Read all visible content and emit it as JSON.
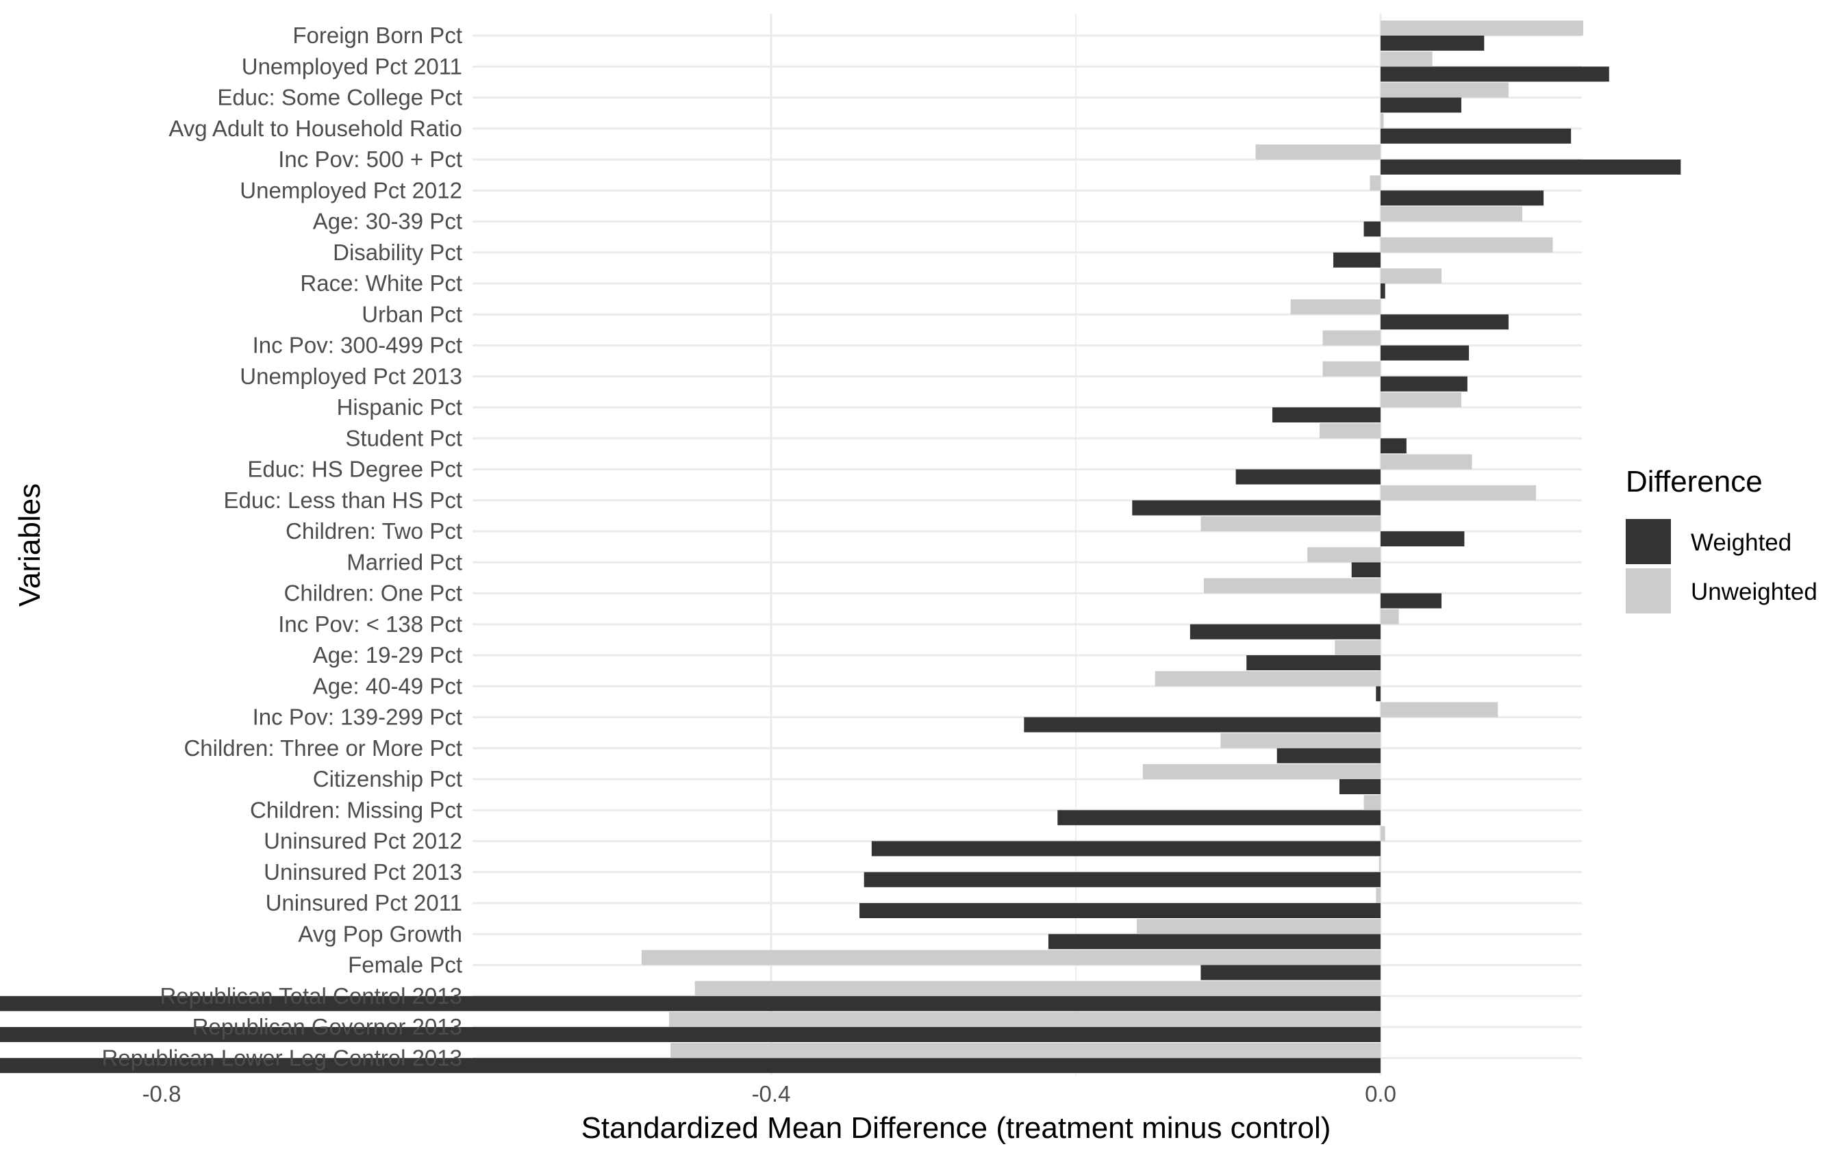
{
  "chart_data": {
    "type": "bar",
    "orientation": "horizontal",
    "title": "",
    "xlabel": "Standardized Mean Difference (treatment minus control)",
    "ylabel": "Variables",
    "xlim": [
      -1.2,
      0.265
    ],
    "x_ticks": [
      {
        "value": -0.8,
        "label": "-0.8"
      },
      {
        "value": -0.4,
        "label": "-0.4"
      },
      {
        "value": 0.0,
        "label": "0.0"
      }
    ],
    "grid": true,
    "legend": {
      "title": "Difference",
      "placement": "right"
    },
    "categories": [
      "Foreign Born Pct",
      "Unemployed Pct 2011",
      "Educ: Some College Pct",
      "Avg Adult to Household Ratio",
      "Inc Pov: 500 + Pct",
      "Unemployed Pct 2012",
      "Age: 30-39 Pct",
      "Disability Pct",
      "Race: White Pct",
      "Urban Pct",
      "Inc Pov: 300-499 Pct",
      "Unemployed Pct 2013",
      "Hispanic Pct",
      "Student Pct",
      "Educ: HS Degree Pct",
      "Educ: Less than HS Pct",
      "Children: Two Pct",
      "Married Pct",
      "Children: One Pct",
      "Inc Pov: < 138 Pct",
      "Age: 19-29 Pct",
      "Age: 40-49 Pct",
      "Inc Pov: 139-299 Pct",
      "Children: Three or More Pct",
      "Citizenship Pct",
      "Children: Missing Pct",
      "Uninsured Pct 2012",
      "Uninsured Pct 2013",
      "Uninsured Pct 2011",
      "Avg Pop Growth",
      "Female Pct",
      "Republican Total Control 2013",
      "Republican Governor 2013",
      "Republican Lower Leg Control 2013"
    ],
    "series": [
      {
        "name": "Weighted",
        "color": "#333333",
        "values": [
          0.068,
          0.15,
          0.053,
          0.125,
          0.197,
          0.107,
          -0.011,
          -0.031,
          0.003,
          0.084,
          0.058,
          0.057,
          -0.071,
          0.017,
          -0.095,
          -0.163,
          0.055,
          -0.019,
          0.04,
          -0.125,
          -0.088,
          -0.003,
          -0.234,
          -0.068,
          -0.027,
          -0.212,
          -0.334,
          -0.339,
          -0.342,
          -0.218,
          -0.118,
          -1.016,
          -1.022,
          -1.117
        ]
      },
      {
        "name": "Unweighted",
        "color": "#cccccc",
        "values": [
          0.133,
          0.034,
          0.084,
          0.002,
          -0.082,
          -0.007,
          0.093,
          0.113,
          0.04,
          -0.059,
          -0.038,
          -0.038,
          0.053,
          -0.04,
          0.06,
          0.102,
          -0.118,
          -0.048,
          -0.116,
          0.012,
          -0.03,
          -0.148,
          0.077,
          -0.105,
          -0.156,
          -0.011,
          0.003,
          -0.001,
          -0.003,
          -0.16,
          -0.485,
          -0.45,
          -0.467,
          -0.466
        ]
      }
    ]
  }
}
